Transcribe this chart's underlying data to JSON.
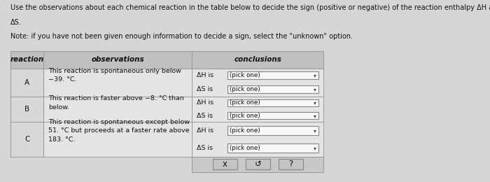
{
  "title_line1": "Use the observations about each chemical reaction in the table below to decide the sign (positive or negative) of the reaction enthalpy ΔH and reaction entropy",
  "title_line2": "ΔS.",
  "note": "Note: if you have not been given enough information to decide a sign, select the \"unknown\" option.",
  "col_headers": [
    "reaction",
    "observations",
    "conclusions"
  ],
  "rows": [
    {
      "label": "A",
      "observation": "This reaction is spontaneous only below\n−39. °C.",
      "conclusions": [
        [
          "ΔH is",
          "(pick one)"
        ],
        [
          "ΔS is",
          "(pick one)"
        ]
      ]
    },
    {
      "label": "B",
      "observation": "This reaction is faster above −8. °C than\nbelow.",
      "conclusions": [
        [
          "ΔH is",
          "(pick one)"
        ],
        [
          "ΔS is",
          "(pick one)"
        ]
      ]
    },
    {
      "label": "C",
      "observation": "This reaction is spontaneous except below\n51. °C but proceeds at a faster rate above\n183. °C.",
      "conclusions": [
        [
          "ΔH is",
          "(pick one)"
        ],
        [
          "ΔS is",
          "(pick one)"
        ]
      ]
    }
  ],
  "footer_buttons": [
    "x",
    "↺",
    "?"
  ],
  "bg_color": "#d6d6d6",
  "header_bg": "#c0c0c0",
  "obs_cell_bg": "#e4e4e4",
  "react_cell_bg": "#d8d8d8",
  "concl_cell_bg": "#e4e4e4",
  "footer_bg": "#c8c8c8",
  "dropdown_bg": "#f8f8f8",
  "dropdown_border": "#888888",
  "border_color": "#999999",
  "text_color": "#111111",
  "title_fontsize": 7.0,
  "note_fontsize": 7.0,
  "header_fontsize": 7.5,
  "cell_fontsize": 6.8,
  "label_fontsize": 7.5
}
